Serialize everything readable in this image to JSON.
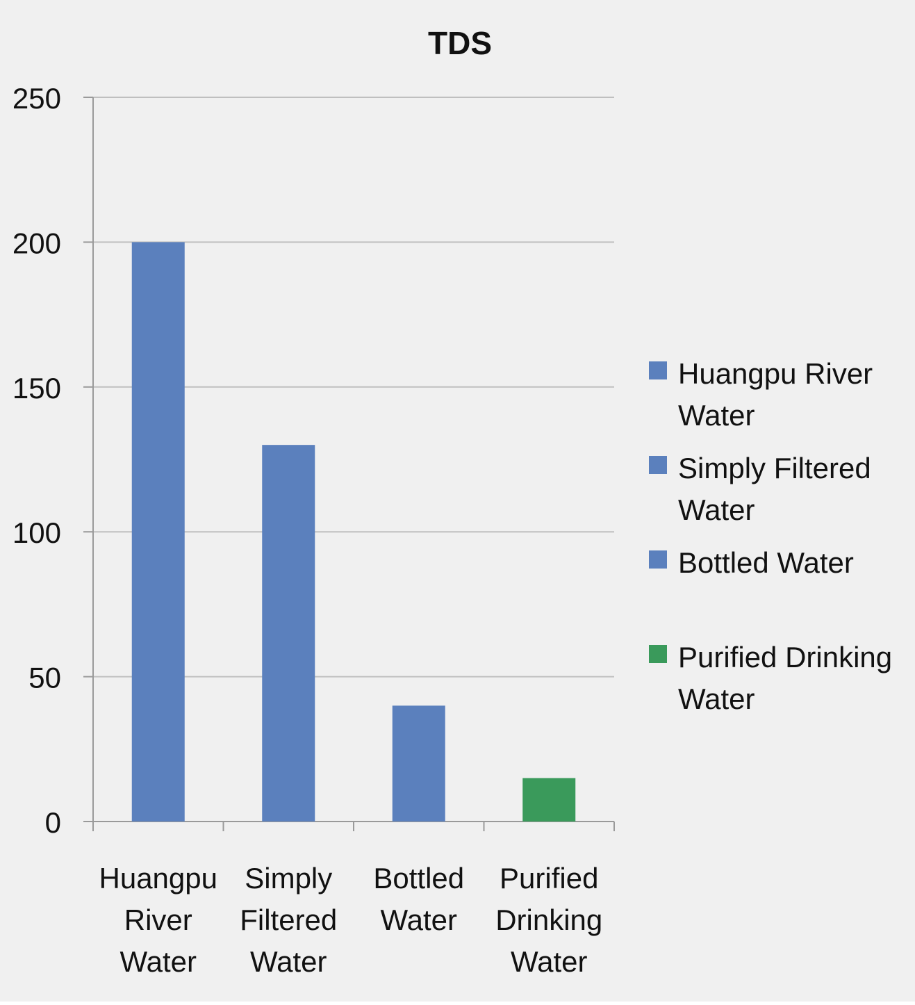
{
  "chart_data": {
    "type": "bar",
    "title": "TDS",
    "categories": [
      "Huangpu River Water",
      "Simply Filtered Water",
      "Bottled Water",
      "Purified Drinking Water"
    ],
    "category_label_lines": [
      [
        "Huangpu",
        "River",
        "Water"
      ],
      [
        "Simply",
        "Filtered",
        "Water"
      ],
      [
        "Bottled",
        "Water"
      ],
      [
        "Purified",
        "Drinking",
        "Water"
      ]
    ],
    "values": [
      200,
      130,
      40,
      15
    ],
    "bar_colors": [
      "#5b80bd",
      "#5b80bd",
      "#5b80bd",
      "#3a9a5b"
    ],
    "ylim": [
      0,
      250
    ],
    "yticks": [
      0,
      50,
      100,
      150,
      200,
      250
    ],
    "xlabel": "",
    "ylabel": "",
    "grid": true,
    "legend": {
      "position": "right",
      "entries": [
        {
          "lines": [
            "Huangpu River",
            "Water"
          ],
          "color": "#5b80bd"
        },
        {
          "lines": [
            "Simply Filtered",
            "Water"
          ],
          "color": "#5b80bd"
        },
        {
          "lines": [
            "Bottled Water"
          ],
          "color": "#5b80bd"
        },
        {
          "lines": [
            "Purified Drinking",
            "Water"
          ],
          "color": "#3a9a5b"
        }
      ]
    },
    "colors": {
      "background": "#f0f0f0",
      "grid": "#bfbfbf",
      "axis": "#9a9a9a"
    }
  }
}
